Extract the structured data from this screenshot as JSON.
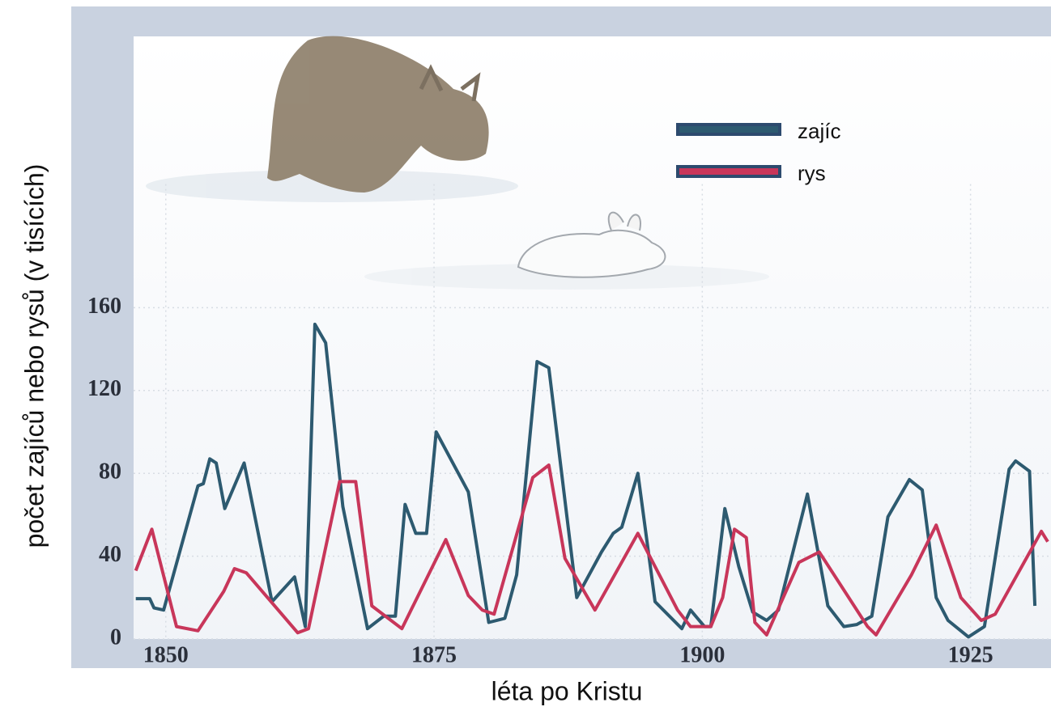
{
  "chart_data": {
    "type": "line",
    "x_label": "léta po Kristu",
    "y_label": "počet zajíců nebo rysů (v tisících)",
    "xlim": [
      1847,
      1932.5
    ],
    "xticks": [
      1850,
      1875,
      1900,
      1925
    ],
    "ylim": [
      0,
      290
    ],
    "yticks": [
      0,
      40,
      80,
      120,
      160
    ],
    "grid": true,
    "legend": "upper right",
    "series": [
      {
        "name": "zajíc",
        "color": "#2d5a70",
        "x": [
          1847.2,
          1848.5,
          1848.9,
          1849.8,
          1853.0,
          1853.5,
          1854.1,
          1854.7,
          1855.5,
          1857.3,
          1859.9,
          1862.0,
          1863.0,
          1863.9,
          1864.9,
          1866.5,
          1868.8,
          1870.3,
          1871.4,
          1872.3,
          1873.3,
          1874.3,
          1875.2,
          1878.2,
          1880.1,
          1881.6,
          1882.7,
          1884.6,
          1885.7,
          1888.3,
          1890.6,
          1891.7,
          1892.5,
          1894.0,
          1895.6,
          1898.1,
          1898.9,
          1900.2,
          1900.8,
          1902.1,
          1903.4,
          1904.7,
          1906.0,
          1907.1,
          1909.8,
          1911.7,
          1913.2,
          1914.4,
          1915.8,
          1917.3,
          1919.3,
          1920.5,
          1921.8,
          1922.9,
          1924.8,
          1926.3,
          1928.6,
          1929.2,
          1930.5,
          1931.0
        ],
        "values": [
          19.5,
          19.5,
          15,
          14,
          74,
          75,
          87,
          85,
          63,
          85,
          18,
          30,
          6,
          152,
          143,
          64,
          5,
          11,
          11,
          65,
          51,
          51,
          100,
          71,
          8,
          10,
          31,
          134,
          131,
          20,
          42,
          51,
          54,
          80,
          18,
          5,
          14,
          6,
          6,
          63,
          35,
          13,
          9,
          14,
          70,
          16,
          6,
          7,
          11,
          59,
          77,
          72,
          20,
          9,
          1,
          6,
          82,
          86,
          81,
          16
        ]
      },
      {
        "name": "rys",
        "color": "#c8365a",
        "x": [
          1847.2,
          1848.7,
          1851.0,
          1853.0,
          1855.4,
          1856.4,
          1857.5,
          1862.3,
          1863.3,
          1866.2,
          1867.7,
          1869.2,
          1872.0,
          1876.1,
          1878.2,
          1879.5,
          1880.6,
          1884.2,
          1885.7,
          1887.2,
          1890.0,
          1894.0,
          1897.7,
          1898.9,
          1900.8,
          1901.9,
          1903.0,
          1904.1,
          1904.9,
          1906.0,
          1909.0,
          1910.9,
          1915.4,
          1916.2,
          1919.5,
          1921.8,
          1924.1,
          1926.0,
          1927.3,
          1931.6,
          1932.2
        ],
        "values": [
          33,
          53,
          6,
          4,
          23,
          34,
          32,
          3,
          5,
          76,
          76,
          16,
          5,
          48,
          21,
          14,
          12,
          78,
          84,
          39,
          14,
          51,
          14,
          6,
          6,
          20,
          53,
          49,
          8,
          2,
          37,
          42,
          6,
          2,
          31,
          55,
          20,
          9,
          12,
          52,
          47
        ]
      }
    ]
  }
}
